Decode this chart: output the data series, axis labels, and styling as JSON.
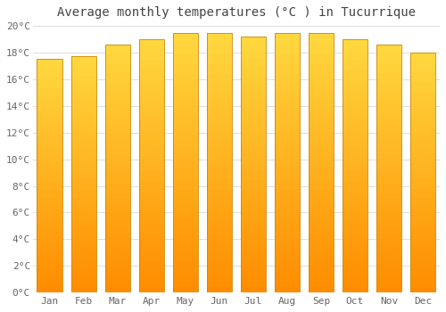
{
  "title": "Average monthly temperatures (°C ) in Tucurrique",
  "months": [
    "Jan",
    "Feb",
    "Mar",
    "Apr",
    "May",
    "Jun",
    "Jul",
    "Aug",
    "Sep",
    "Oct",
    "Nov",
    "Dec"
  ],
  "values": [
    17.5,
    17.7,
    18.6,
    19.0,
    19.5,
    19.5,
    19.2,
    19.5,
    19.5,
    19.0,
    18.6,
    18.0
  ],
  "bar_color_main": "#FFA500",
  "bar_color_light": "#FFD060",
  "bar_edge_color": "#CC8800",
  "background_color": "#FFFFFF",
  "plot_bg_color": "#FFFFFF",
  "grid_color": "#DDDDDD",
  "ylim": [
    0,
    20
  ],
  "yticks": [
    0,
    2,
    4,
    6,
    8,
    10,
    12,
    14,
    16,
    18,
    20
  ],
  "title_fontsize": 10,
  "tick_fontsize": 8,
  "bar_width": 0.75,
  "title_color": "#444444",
  "tick_color": "#666666"
}
